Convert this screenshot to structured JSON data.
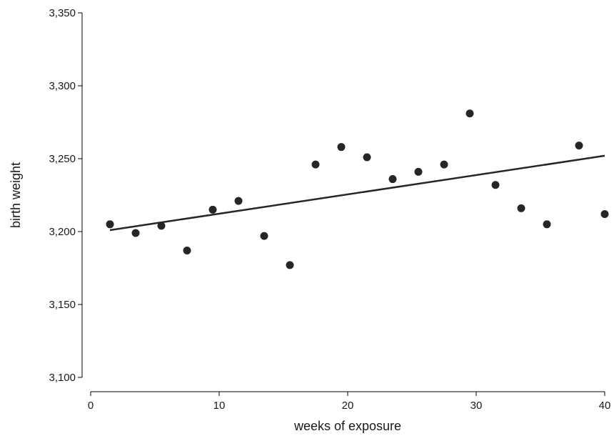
{
  "chart_data": {
    "type": "scatter",
    "title": "",
    "xlabel": "weeks of exposure",
    "ylabel": "birth weight",
    "xlim": [
      0,
      40
    ],
    "ylim": [
      3100,
      3350
    ],
    "x_ticks": [
      0,
      10,
      20,
      30,
      40
    ],
    "x_tick_labels": [
      "0",
      "10",
      "20",
      "30",
      "40"
    ],
    "y_ticks": [
      3100,
      3150,
      3200,
      3250,
      3300,
      3350
    ],
    "y_tick_labels": [
      "3,100",
      "3,150",
      "3,200",
      "3,250",
      "3,300",
      "3,350"
    ],
    "grid": false,
    "series": [
      {
        "type": "scatter",
        "color": "#262626",
        "points": [
          {
            "x": 1.5,
            "y": 3205
          },
          {
            "x": 3.5,
            "y": 3199
          },
          {
            "x": 5.5,
            "y": 3204
          },
          {
            "x": 7.5,
            "y": 3187
          },
          {
            "x": 9.5,
            "y": 3215
          },
          {
            "x": 11.5,
            "y": 3221
          },
          {
            "x": 13.5,
            "y": 3197
          },
          {
            "x": 15.5,
            "y": 3177
          },
          {
            "x": 17.5,
            "y": 3246
          },
          {
            "x": 19.5,
            "y": 3258
          },
          {
            "x": 21.5,
            "y": 3251
          },
          {
            "x": 23.5,
            "y": 3236
          },
          {
            "x": 25.5,
            "y": 3241
          },
          {
            "x": 27.5,
            "y": 3246
          },
          {
            "x": 29.5,
            "y": 3281
          },
          {
            "x": 31.5,
            "y": 3232
          },
          {
            "x": 33.5,
            "y": 3216
          },
          {
            "x": 35.5,
            "y": 3205
          },
          {
            "x": 38.0,
            "y": 3259
          },
          {
            "x": 40.0,
            "y": 3212
          }
        ]
      },
      {
        "type": "line",
        "color": "#262626",
        "points": [
          {
            "x": 1.5,
            "y": 3201
          },
          {
            "x": 40.0,
            "y": 3252
          }
        ]
      }
    ]
  }
}
